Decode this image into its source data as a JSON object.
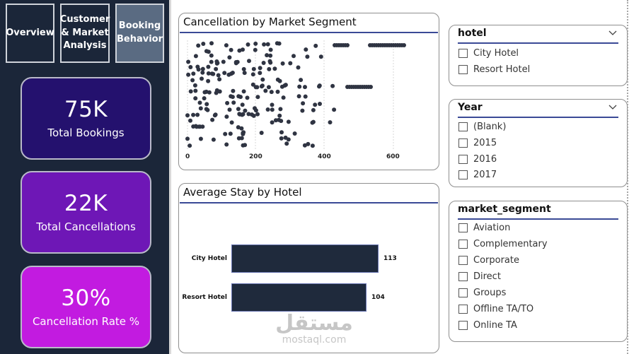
{
  "nav": {
    "overview": "Overview",
    "customer_line1": "Customer",
    "customer_line2": "& Market",
    "customer_line3": "Analysis",
    "booking_line1": "Booking",
    "booking_line2": "Behavior"
  },
  "kpis": [
    {
      "value": "75K",
      "label": "Total Bookings",
      "color": "#24116e"
    },
    {
      "value": "22K",
      "label": "Total Cancellations",
      "color": "#6e17b6"
    },
    {
      "value": "30%",
      "label": "Cancellation Rate %",
      "color": "#c21be0"
    }
  ],
  "chart_data": [
    {
      "type": "scatter",
      "title": "Cancellation by Market Segment",
      "x_ticks": [
        "0",
        "200",
        "400",
        "600"
      ],
      "xlim": [
        0,
        630
      ],
      "color": "#2f3442",
      "description_of_rows": "dot strips per market segment"
    },
    {
      "type": "bar",
      "title": "Average Stay by Hotel",
      "orientation": "horizontal",
      "categories": [
        "City Hotel",
        "Resort Hotel"
      ],
      "values": [
        113,
        104
      ],
      "value_labels": [
        "113",
        "104"
      ],
      "xlim": [
        0,
        135
      ],
      "color": "#1f2a3c"
    }
  ],
  "slicers": {
    "hotel": {
      "title": "hotel",
      "options": [
        "City Hotel",
        "Resort Hotel"
      ]
    },
    "year": {
      "title": "Year",
      "options": [
        "(Blank)",
        "2015",
        "2016",
        "2017"
      ]
    },
    "segment": {
      "title": "market_segment",
      "options": [
        "Aviation",
        "Complementary",
        "Corporate",
        "Direct",
        "Groups",
        "Offline TA/TO",
        "Online TA"
      ]
    }
  },
  "watermark": {
    "arabic": "مستقل",
    "latin": "mostaql.com"
  }
}
